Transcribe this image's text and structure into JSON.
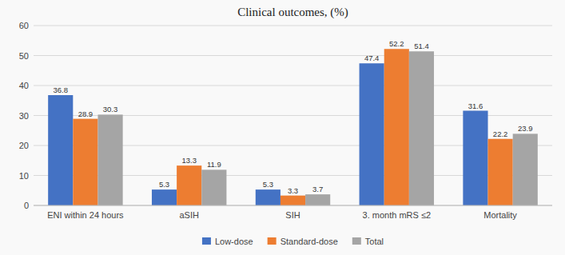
{
  "chart_data": {
    "type": "bar",
    "title": "Clinical outcomes, (%)",
    "categories": [
      "ENI within 24 hours",
      "aSIH",
      "SIH",
      "3. month mRS ≤2",
      "Mortality"
    ],
    "series": [
      {
        "name": "Low-dose",
        "color": "#4472c4",
        "values": [
          36.8,
          5.3,
          5.3,
          47.4,
          31.6
        ]
      },
      {
        "name": "Standard-dose",
        "color": "#ed7d31",
        "values": [
          28.9,
          13.3,
          3.3,
          52.2,
          22.2
        ]
      },
      {
        "name": "Total",
        "color": "#a5a5a5",
        "values": [
          30.3,
          11.9,
          3.7,
          51.4,
          23.9
        ]
      }
    ],
    "ylim": [
      0,
      60
    ],
    "yticks": [
      0,
      10,
      20,
      30,
      40,
      50,
      60
    ],
    "grid": true,
    "legend": "bottom",
    "data_labels": true
  }
}
